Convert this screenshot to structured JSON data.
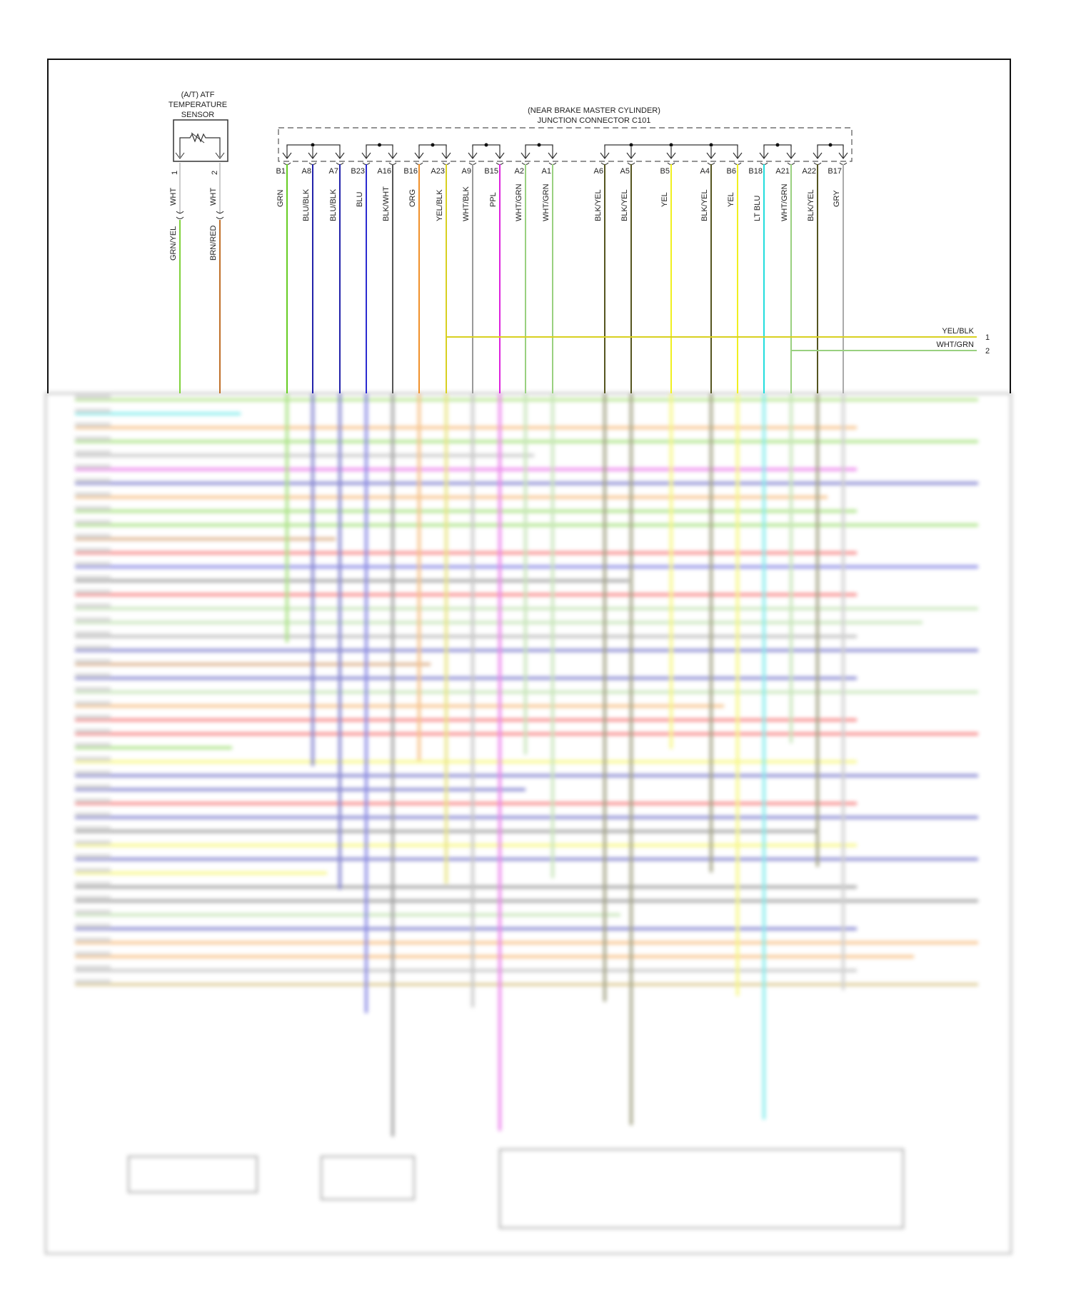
{
  "sensor": {
    "title_lines": [
      "(A/T) ATF",
      "TEMPERATURE",
      "SENSOR"
    ],
    "pins": [
      {
        "pin": "1",
        "upper_color": "WHT",
        "lower_color": "GRN/YEL",
        "hex": "#7fd13b"
      },
      {
        "pin": "2",
        "upper_color": "WHT",
        "lower_color": "BRN/RED",
        "hex": "#c0702a"
      }
    ]
  },
  "junction": {
    "title_lines": [
      "(NEAR BRAKE MASTER CYLINDER)",
      "JUNCTION CONNECTOR C101"
    ],
    "pins": [
      {
        "pin": "B1",
        "color": "GRN",
        "hex": "#66cc22"
      },
      {
        "pin": "A8",
        "color": "BLU/BLK",
        "hex": "#2222aa"
      },
      {
        "pin": "A7",
        "color": "BLU/BLK",
        "hex": "#2222aa"
      },
      {
        "pin": "B23",
        "color": "BLU",
        "hex": "#2a2ad0"
      },
      {
        "pin": "A16",
        "color": "BLK/WHT",
        "hex": "#555555"
      },
      {
        "pin": "B16",
        "color": "ORG",
        "hex": "#f0902a"
      },
      {
        "pin": "A23",
        "color": "YEL/BLK",
        "hex": "#d8d020"
      },
      {
        "pin": "A9",
        "color": "WHT/BLK",
        "hex": "#999999"
      },
      {
        "pin": "B15",
        "color": "PPL",
        "hex": "#dd22dd"
      },
      {
        "pin": "A2",
        "color": "WHT/GRN",
        "hex": "#99d080"
      },
      {
        "pin": "A1",
        "color": "WHT/GRN",
        "hex": "#99d080"
      },
      {
        "pin": "A6",
        "color": "BLK/YEL",
        "hex": "#555520"
      },
      {
        "pin": "A5",
        "color": "BLK/YEL",
        "hex": "#555520"
      },
      {
        "pin": "B5",
        "color": "YEL",
        "hex": "#f0f020"
      },
      {
        "pin": "A4",
        "color": "BLK/YEL",
        "hex": "#555520"
      },
      {
        "pin": "B6",
        "color": "YEL",
        "hex": "#f0f020"
      },
      {
        "pin": "B18",
        "color": "LT BLU",
        "hex": "#22dddd"
      },
      {
        "pin": "A21",
        "color": "WHT/GRN",
        "hex": "#99d080"
      },
      {
        "pin": "A22",
        "color": "BLK/YEL",
        "hex": "#555520"
      },
      {
        "pin": "B17",
        "color": "GRY",
        "hex": "#aaaaaa"
      }
    ],
    "splices": [
      [
        "B1",
        "A8",
        "A7"
      ],
      [
        "B23",
        "A16"
      ],
      [
        "B16",
        "A23"
      ],
      [
        "A9",
        "B15"
      ],
      [
        "A2",
        "A1"
      ],
      [
        "A6",
        "A5",
        "B5",
        "A4",
        "B6"
      ],
      [
        "B18",
        "A21"
      ],
      [
        "A22",
        "B17"
      ]
    ]
  },
  "outputs": [
    {
      "label": "YEL/BLK",
      "pin": "1",
      "from": "A23",
      "hex": "#d8d020"
    },
    {
      "label": "WHT/GRN",
      "pin": "2",
      "from": "A21",
      "hex": "#99d080"
    }
  ]
}
